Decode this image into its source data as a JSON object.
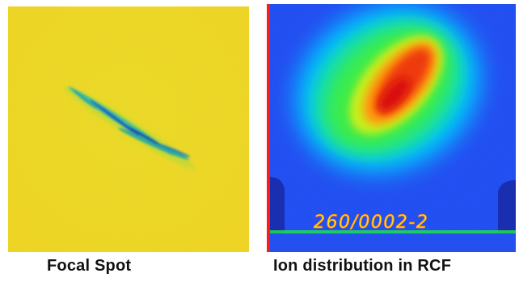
{
  "figure": {
    "left": {
      "caption": "Focal Spot",
      "background_color": "#f2d91c",
      "streak_colors": [
        "#18a6a0",
        "#1b5fbf"
      ]
    },
    "right": {
      "caption": "Ion distribution in RCF",
      "handwritten_label": "260/0002-2",
      "colormap": [
        "#1f4bff",
        "#00c8ff",
        "#18e85a",
        "#e6e61a",
        "#ff9a10",
        "#e8160e"
      ]
    }
  }
}
